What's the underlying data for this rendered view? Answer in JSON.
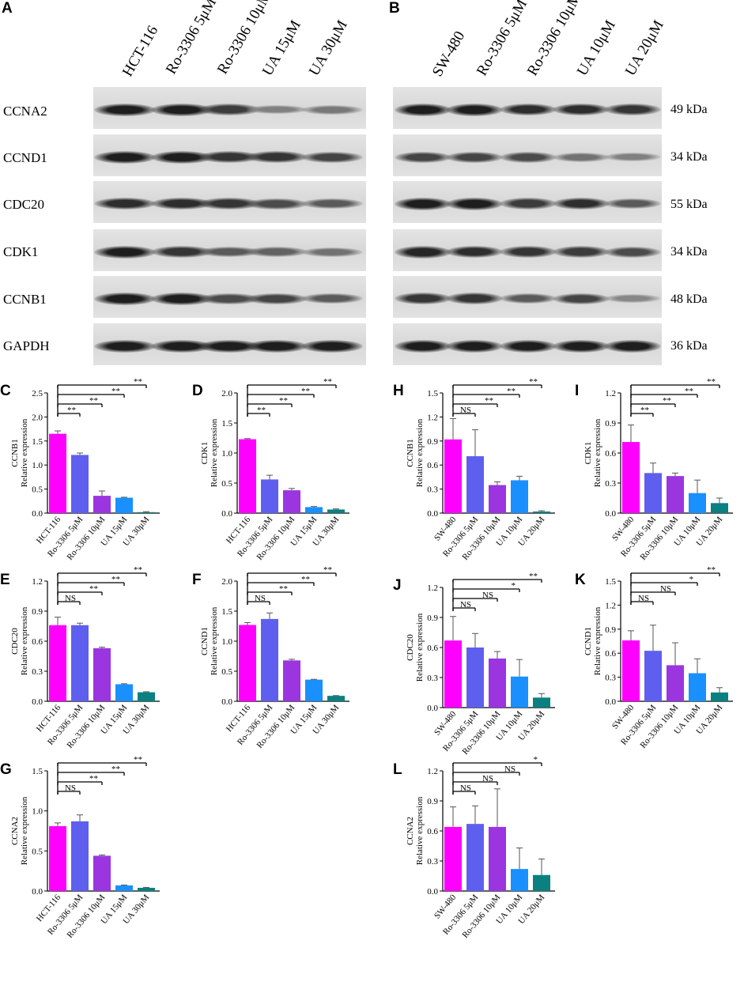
{
  "panels": {
    "A": "A",
    "B": "B",
    "C": "C",
    "D": "D",
    "E": "E",
    "F": "F",
    "G": "G",
    "H": "H",
    "I": "I",
    "J": "J",
    "K": "K",
    "L": "L"
  },
  "blot_A": {
    "lanes": [
      "HCT-116",
      "Ro-3306 5μM",
      "Ro-3306 10μM",
      "UA 15μM",
      "UA 30μM"
    ],
    "rows": [
      "CCNA2",
      "CCND1",
      "CDC20",
      "CDK1",
      "CCNB1",
      "GAPDH"
    ]
  },
  "blot_B": {
    "lanes": [
      "SW-480",
      "Ro-3306 5μM",
      "Ro-3306 10μM",
      "UA 10μM",
      "UA 20μM"
    ],
    "kda": [
      "49 kDa",
      "34 kDa",
      "55 kDa",
      "34 kDa",
      "48 kDa",
      "36 kDa"
    ]
  },
  "colors": [
    "#ff00ff",
    "#5f5fef",
    "#9a35e0",
    "#1a90ff",
    "#0a8080"
  ],
  "chart_data": [
    {
      "panel": "C",
      "type": "bar",
      "ylabel_top": "CCNB1",
      "ylabel": "Relative expression",
      "ylim": [
        0,
        2.5
      ],
      "ticks": [
        "0.0",
        "0.5",
        "1.0",
        "1.5",
        "2.0",
        "2.5"
      ],
      "categories": [
        "HCT-116",
        "Ro-3306 5μM",
        "Ro-3306 10μM",
        "UA 15μM",
        "UA 30μM"
      ],
      "values": [
        1.65,
        1.21,
        0.36,
        0.32,
        0.02
      ],
      "errors": [
        0.06,
        0.04,
        0.1,
        0.01,
        0.01
      ],
      "sig": [
        {
          "to": 1,
          "label": "**"
        },
        {
          "to": 2,
          "label": "**"
        },
        {
          "to": 3,
          "label": "**"
        },
        {
          "to": 4,
          "label": "**"
        }
      ]
    },
    {
      "panel": "D",
      "type": "bar",
      "ylabel_top": "CDK1",
      "ylabel": "Relative expression",
      "ylim": [
        0,
        2.0
      ],
      "ticks": [
        "0.0",
        "0.5",
        "1.0",
        "1.5",
        "2.0"
      ],
      "categories": [
        "HCT-116",
        "Ro-3306 5μM",
        "Ro-3306 10μM",
        "UA 15μM",
        "UA 30μM"
      ],
      "values": [
        1.23,
        0.56,
        0.38,
        0.1,
        0.06
      ],
      "errors": [
        0.01,
        0.07,
        0.03,
        0.01,
        0.01
      ],
      "sig": [
        {
          "to": 1,
          "label": "**"
        },
        {
          "to": 2,
          "label": "**"
        },
        {
          "to": 3,
          "label": "**"
        },
        {
          "to": 4,
          "label": "**"
        }
      ]
    },
    {
      "panel": "E",
      "type": "bar",
      "ylabel_top": "CDC20",
      "ylabel": "Relative expression",
      "ylim": [
        0,
        1.2
      ],
      "ticks": [
        "0.0",
        "0.3",
        "0.6",
        "0.9",
        "1.2"
      ],
      "categories": [
        "HCT-116",
        "Ro-3306 5μM",
        "Ro-3306 10μM",
        "UA 15μM",
        "UA 30μM"
      ],
      "values": [
        0.76,
        0.76,
        0.53,
        0.17,
        0.09
      ],
      "errors": [
        0.08,
        0.02,
        0.01,
        0.005,
        0.005
      ],
      "sig": [
        {
          "to": 1,
          "label": "NS"
        },
        {
          "to": 2,
          "label": "**"
        },
        {
          "to": 3,
          "label": "**"
        },
        {
          "to": 4,
          "label": "**"
        }
      ]
    },
    {
      "panel": "F",
      "type": "bar",
      "ylabel_top": "CCND1",
      "ylabel": "Relative expression",
      "ylim": [
        0,
        2.0
      ],
      "ticks": [
        "0.0",
        "0.5",
        "1.0",
        "1.5",
        "2.0"
      ],
      "categories": [
        "HCT-116",
        "Ro-3306 5μM",
        "Ro-3306 10μM",
        "UA 15μM",
        "UA 30μM"
      ],
      "values": [
        1.27,
        1.37,
        0.68,
        0.36,
        0.09
      ],
      "errors": [
        0.04,
        0.1,
        0.02,
        0.005,
        0.005
      ],
      "sig": [
        {
          "to": 1,
          "label": "NS"
        },
        {
          "to": 2,
          "label": "**"
        },
        {
          "to": 3,
          "label": "**"
        },
        {
          "to": 4,
          "label": "**"
        }
      ]
    },
    {
      "panel": "G",
      "type": "bar",
      "ylabel_top": "CCNA2",
      "ylabel": "Relative expression",
      "ylim": [
        0,
        1.5
      ],
      "ticks": [
        "0.0",
        "0.5",
        "1.0",
        "1.5"
      ],
      "categories": [
        "HCT-116",
        "Ro-3306 5μM",
        "Ro-3306 10μM",
        "UA 15μM",
        "UA 30μM"
      ],
      "values": [
        0.81,
        0.87,
        0.44,
        0.07,
        0.04
      ],
      "errors": [
        0.04,
        0.08,
        0.01,
        0.005,
        0.005
      ],
      "sig": [
        {
          "to": 1,
          "label": "NS"
        },
        {
          "to": 2,
          "label": "**"
        },
        {
          "to": 3,
          "label": "**"
        },
        {
          "to": 4,
          "label": "**"
        }
      ]
    },
    {
      "panel": "H",
      "type": "bar",
      "ylabel_top": "CCNB1",
      "ylabel": "Relative expression",
      "ylim": [
        0,
        1.5
      ],
      "ticks": [
        "0.0",
        "0.3",
        "0.6",
        "0.9",
        "1.2",
        "1.5"
      ],
      "categories": [
        "SW-480",
        "Ro-3306 5μM",
        "Ro-3306 10μM",
        "UA 10μM",
        "UA 20μM"
      ],
      "values": [
        0.92,
        0.71,
        0.35,
        0.41,
        0.02
      ],
      "errors": [
        0.26,
        0.33,
        0.04,
        0.05,
        0.01
      ],
      "sig": [
        {
          "to": 1,
          "label": "NS"
        },
        {
          "to": 2,
          "label": "**"
        },
        {
          "to": 3,
          "label": "**"
        },
        {
          "to": 4,
          "label": "**"
        }
      ]
    },
    {
      "panel": "I",
      "type": "bar",
      "ylabel_top": "CDK1",
      "ylabel": "Relative expression",
      "ylim": [
        0,
        1.2
      ],
      "ticks": [
        "0.0",
        "0.3",
        "0.6",
        "0.9",
        "1.2"
      ],
      "categories": [
        "SW-480",
        "Ro-3306 5μM",
        "Ro-3306 10μM",
        "UA 10μM",
        "UA 20μM"
      ],
      "values": [
        0.71,
        0.4,
        0.37,
        0.2,
        0.1
      ],
      "errors": [
        0.17,
        0.1,
        0.03,
        0.13,
        0.05
      ],
      "sig": [
        {
          "to": 1,
          "label": "**"
        },
        {
          "to": 2,
          "label": "**"
        },
        {
          "to": 3,
          "label": "**"
        },
        {
          "to": 4,
          "label": "**"
        }
      ]
    },
    {
      "panel": "J",
      "type": "bar",
      "ylabel_top": "CDC20",
      "ylabel": "Relative expression",
      "ylim": [
        0,
        1.2
      ],
      "ticks": [
        "0.0",
        "0.3",
        "0.6",
        "0.9",
        "1.2"
      ],
      "categories": [
        "SW-480",
        "Ro-3306 5μM",
        "Ro-3306 10μM",
        "UA 10μM",
        "UA 20μM"
      ],
      "values": [
        0.67,
        0.6,
        0.49,
        0.31,
        0.1
      ],
      "errors": [
        0.24,
        0.14,
        0.07,
        0.17,
        0.04
      ],
      "sig": [
        {
          "to": 1,
          "label": "NS"
        },
        {
          "to": 2,
          "label": "NS"
        },
        {
          "to": 3,
          "label": "*"
        },
        {
          "to": 4,
          "label": "**"
        }
      ]
    },
    {
      "panel": "K",
      "type": "bar",
      "ylabel_top": "CCND1",
      "ylabel": "Relative expression",
      "ylim": [
        0,
        1.5
      ],
      "ticks": [
        "0.0",
        "0.3",
        "0.6",
        "0.9",
        "1.2",
        "1.5"
      ],
      "categories": [
        "SW-480",
        "Ro-3306 5μM",
        "Ro-3306 10μM",
        "UA 10μM",
        "UA 20μM"
      ],
      "values": [
        0.76,
        0.63,
        0.45,
        0.35,
        0.11
      ],
      "errors": [
        0.12,
        0.32,
        0.28,
        0.18,
        0.06
      ],
      "sig": [
        {
          "to": 1,
          "label": "NS"
        },
        {
          "to": 2,
          "label": "NS"
        },
        {
          "to": 3,
          "label": "*"
        },
        {
          "to": 4,
          "label": "**"
        }
      ]
    },
    {
      "panel": "L",
      "type": "bar",
      "ylabel_top": "CCNA2",
      "ylabel": "Relative expression",
      "ylim": [
        0,
        1.2
      ],
      "ticks": [
        "0.0",
        "0.3",
        "0.6",
        "0.9",
        "1.2"
      ],
      "categories": [
        "SW-480",
        "Ro-3306 5μM",
        "Ro-3306 10μM",
        "UA 10μM",
        "UA 20μM"
      ],
      "values": [
        0.64,
        0.67,
        0.64,
        0.22,
        0.16
      ],
      "errors": [
        0.2,
        0.18,
        0.38,
        0.21,
        0.16
      ],
      "sig": [
        {
          "to": 1,
          "label": "NS"
        },
        {
          "to": 2,
          "label": "NS"
        },
        {
          "to": 3,
          "label": "NS"
        },
        {
          "to": 4,
          "label": "*"
        }
      ]
    }
  ]
}
